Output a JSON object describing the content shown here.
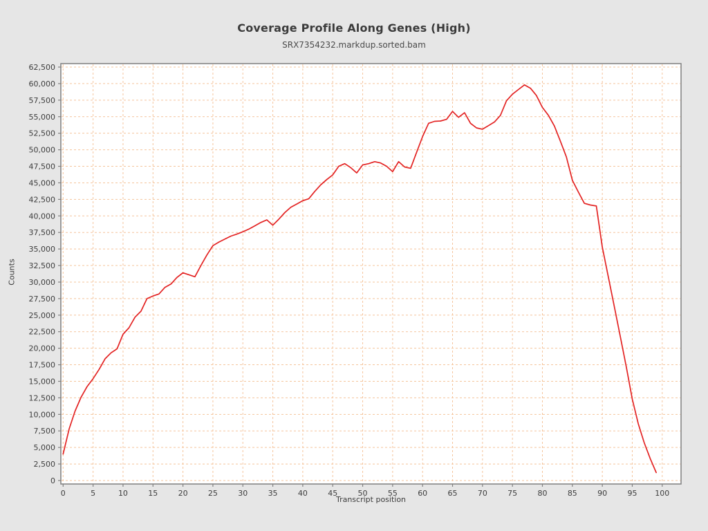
{
  "colors": {
    "page_background": "#e6e6e6",
    "plot_background": "#ffffff",
    "grid": "#f5c49b",
    "frame": "#7f7f7f",
    "line": "#e32222",
    "text": "#3c3c3c"
  },
  "chart_data": {
    "type": "line",
    "title": "Coverage Profile Along Genes (High)",
    "subtitle": "SRX7354232.markdup.sorted.bam",
    "xlabel": "Transcript position",
    "ylabel": "Counts",
    "xlim": [
      -0.4,
      103.2
    ],
    "ylim": [
      0,
      63000
    ],
    "grid": "dashed-orange-both-axes",
    "legend": "none",
    "x_ticks": [
      0,
      5,
      10,
      15,
      20,
      25,
      30,
      35,
      40,
      45,
      50,
      55,
      60,
      65,
      70,
      75,
      80,
      85,
      90,
      95,
      100
    ],
    "x_tick_labels": [
      "0",
      "5",
      "10",
      "15",
      "20",
      "25",
      "30",
      "35",
      "40",
      "45",
      "50",
      "55",
      "60",
      "65",
      "70",
      "75",
      "80",
      "85",
      "90",
      "95",
      "100"
    ],
    "y_ticks": [
      0,
      2500,
      5000,
      7500,
      10000,
      12500,
      15000,
      17500,
      20000,
      22500,
      25000,
      27500,
      30000,
      32500,
      35000,
      37500,
      40000,
      42500,
      45000,
      47500,
      50000,
      52500,
      55000,
      57500,
      60000,
      62500
    ],
    "y_tick_labels": [
      "0",
      "2,500",
      "5,000",
      "7,500",
      "10,000",
      "12,500",
      "15,000",
      "17,500",
      "20,000",
      "22,500",
      "25,000",
      "27,500",
      "30,000",
      "32,500",
      "35,000",
      "37,500",
      "40,000",
      "42,500",
      "45,000",
      "47,500",
      "50,000",
      "52,500",
      "55,000",
      "57,500",
      "60,000",
      "62,500"
    ],
    "x": [
      0,
      1,
      2,
      3,
      4,
      5,
      6,
      7,
      8,
      9,
      10,
      11,
      12,
      13,
      14,
      15,
      16,
      17,
      18,
      19,
      20,
      21,
      22,
      23,
      24,
      25,
      26,
      27,
      28,
      29,
      30,
      31,
      32,
      33,
      34,
      35,
      36,
      37,
      38,
      39,
      40,
      41,
      42,
      43,
      44,
      45,
      46,
      47,
      48,
      49,
      50,
      51,
      52,
      53,
      54,
      55,
      56,
      57,
      58,
      59,
      60,
      61,
      62,
      63,
      64,
      65,
      66,
      67,
      68,
      69,
      70,
      71,
      72,
      73,
      74,
      75,
      76,
      77,
      78,
      79,
      80,
      81,
      82,
      83,
      84,
      85,
      86,
      87,
      88,
      89,
      90,
      91,
      92,
      93,
      94,
      95,
      96,
      97,
      98,
      99
    ],
    "values": [
      4000,
      7800,
      10500,
      12600,
      14200,
      15400,
      16800,
      18400,
      19300,
      19900,
      22100,
      23100,
      24700,
      25600,
      27500,
      27900,
      28200,
      29200,
      29700,
      30700,
      31400,
      31100,
      30800,
      32500,
      34100,
      35500,
      36050,
      36500,
      36950,
      37250,
      37600,
      38000,
      38500,
      39000,
      39400,
      38600,
      39500,
      40500,
      41300,
      41800,
      42300,
      42600,
      43700,
      44700,
      45500,
      46200,
      47500,
      47900,
      47300,
      46500,
      47700,
      47900,
      48200,
      48000,
      47500,
      46700,
      48200,
      47400,
      47200,
      49600,
      52000,
      54000,
      54300,
      54350,
      54600,
      55800,
      54900,
      55600,
      54000,
      53300,
      53100,
      53650,
      54200,
      55200,
      57400,
      58400,
      59100,
      59800,
      59300,
      58200,
      56400,
      55200,
      53600,
      51300,
      48900,
      45400,
      43600,
      41900,
      41650,
      41500,
      35300,
      30800,
      26300,
      21800,
      17200,
      12300,
      8600,
      5700,
      3300,
      1200
    ]
  }
}
